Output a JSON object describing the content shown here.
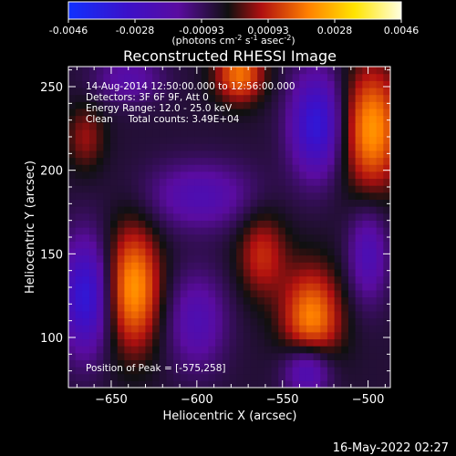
{
  "chart_data": {
    "type": "heatmap",
    "title": "Reconstructed RHESSI Image",
    "xlabel": "Heliocentric X (arcsec)",
    "ylabel": "Heliocentric Y (arcsec)",
    "xlim": [
      -675,
      -487
    ],
    "ylim": [
      70,
      262
    ],
    "xticks": [
      -650,
      -600,
      -550,
      -500
    ],
    "yticks": [
      100,
      150,
      200,
      250
    ],
    "colorbar": {
      "ticks": [
        "-0.0046",
        "-0.0028",
        "-0.00093",
        "0.00093",
        "0.0028",
        "0.0046"
      ],
      "min": -0.0046,
      "max": 0.0046,
      "label": "(photons cm-2 s-1 asec-2)",
      "colors": [
        "#1030ff",
        "#3c10c8",
        "#5a0ca0",
        "#101010",
        "#b01010",
        "#ff8000",
        "#ffe400",
        "#ffffe0"
      ]
    },
    "annotations": {
      "time": "14-Aug-2014 12:50:00.000 to 12:56:00.000",
      "detectors": "Detectors: 3F 6F 9F, Att 0",
      "energy": "Energy Range: 12.0 - 25.0 keV",
      "clean": "Clean     Total counts: 3.49E+04",
      "peak": "Position of Peak = [-575,258]"
    },
    "footer_date": "16-May-2022 02:27",
    "features": [
      {
        "kind": "positive",
        "x": -637,
        "y": 130,
        "sx": 11,
        "sy": 26,
        "amp": 1.0
      },
      {
        "kind": "positive",
        "x": -533,
        "y": 110,
        "sx": 12,
        "sy": 22,
        "amp": 0.95
      },
      {
        "kind": "positive",
        "x": -498,
        "y": 225,
        "sx": 12,
        "sy": 26,
        "amp": 1.0
      },
      {
        "kind": "positive",
        "x": -575,
        "y": 258,
        "sx": 10,
        "sy": 12,
        "amp": 0.85
      },
      {
        "kind": "positive",
        "x": -562,
        "y": 150,
        "sx": 10,
        "sy": 18,
        "amp": 0.55
      },
      {
        "kind": "positive",
        "x": -665,
        "y": 220,
        "sx": 8,
        "sy": 14,
        "amp": 0.4
      },
      {
        "kind": "negative",
        "x": -665,
        "y": 125,
        "sx": 10,
        "sy": 24,
        "amp": 1.0
      },
      {
        "kind": "negative",
        "x": -530,
        "y": 228,
        "sx": 11,
        "sy": 22,
        "amp": 1.0
      },
      {
        "kind": "negative",
        "x": -535,
        "y": 82,
        "sx": 10,
        "sy": 12,
        "amp": 0.9
      },
      {
        "kind": "negative",
        "x": -598,
        "y": 185,
        "sx": 22,
        "sy": 14,
        "amp": 0.55
      },
      {
        "kind": "negative",
        "x": -600,
        "y": 110,
        "sx": 12,
        "sy": 20,
        "amp": 0.55
      },
      {
        "kind": "negative",
        "x": -500,
        "y": 150,
        "sx": 8,
        "sy": 20,
        "amp": 0.6
      },
      {
        "kind": "negative",
        "x": -640,
        "y": 255,
        "sx": 14,
        "sy": 10,
        "amp": 0.45
      }
    ]
  }
}
